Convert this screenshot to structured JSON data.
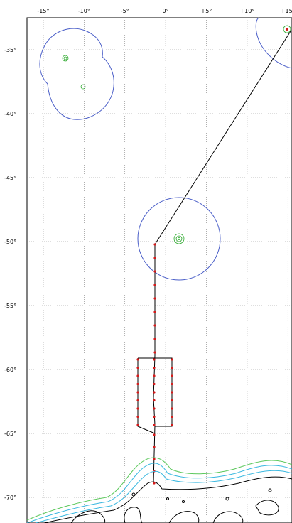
{
  "map": {
    "lon_ticks": [
      "-15°",
      "-10°",
      "-5°",
      "0°",
      "+5°",
      "+10°",
      "+15°"
    ],
    "lon_values": [
      -15,
      -10,
      -5,
      0,
      5,
      10,
      15
    ],
    "lat_ticks": [
      "-35°",
      "-40°",
      "-45°",
      "-50°",
      "-55°",
      "-60°",
      "-65°",
      "-70°"
    ],
    "lat_values": [
      -35,
      -40,
      -45,
      -50,
      -55,
      -60,
      -65,
      -70
    ],
    "extent": {
      "lon": [
        -17,
        15.5
      ],
      "lat": [
        -32.5,
        -72
      ]
    },
    "grid": true,
    "colors": {
      "range_circle": "#4a5ec8",
      "island": "#2aa82a",
      "track": "#000000",
      "station": "#d41a1a",
      "isobath_inner": "#3ab8e0",
      "isobath_outer": "#5cc85c"
    }
  }
}
